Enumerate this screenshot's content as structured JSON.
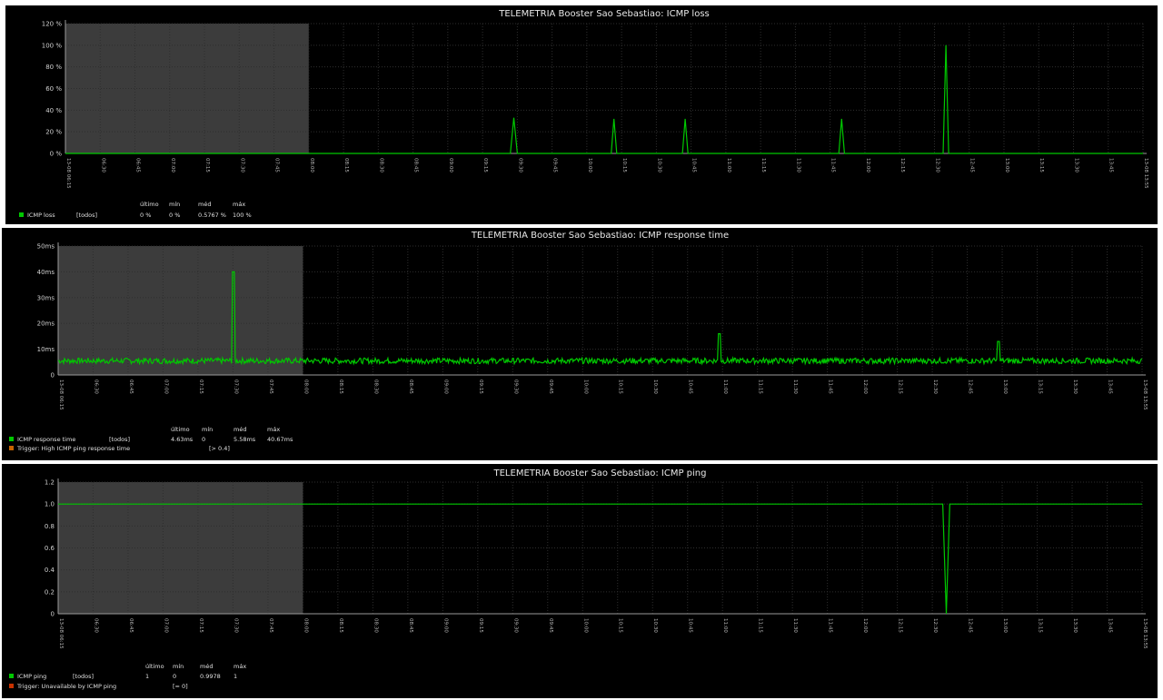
{
  "chart_data": [
    {
      "type": "line",
      "title": "TELEMETRIA Booster Sao Sebastiao: ICMP loss",
      "y_ticks": [
        "0 %",
        "20 %",
        "40 %",
        "60 %",
        "80 %",
        "100 %",
        "120 %"
      ],
      "ylim": [
        0,
        120
      ],
      "x_ticks": [
        "13-08 06:15",
        "06:30",
        "06:45",
        "07:00",
        "07:15",
        "07:30",
        "07:45",
        "08:00",
        "08:15",
        "08:30",
        "08:45",
        "09:00",
        "09:15",
        "09:30",
        "09:45",
        "10:00",
        "10:15",
        "10:30",
        "10:45",
        "11:00",
        "11:15",
        "11:30",
        "11:45",
        "12:00",
        "12:15",
        "12:30",
        "12:45",
        "13:00",
        "13:15",
        "13:30",
        "13:45",
        "13-08 13:55"
      ],
      "shade_x": [
        0,
        7
      ],
      "grid": true,
      "series": [
        {
          "name": "ICMP loss",
          "color": "#00c800",
          "points": [
            [
              0,
              0
            ],
            [
              6.5,
              0
            ],
            [
              12.8,
              0
            ],
            [
              12.9,
              33
            ],
            [
              13.0,
              0
            ],
            [
              15.7,
              0
            ],
            [
              15.78,
              32
            ],
            [
              15.86,
              0
            ],
            [
              17.75,
              0
            ],
            [
              17.83,
              32
            ],
            [
              17.91,
              0
            ],
            [
              22.25,
              0
            ],
            [
              22.33,
              32
            ],
            [
              22.41,
              0
            ],
            [
              25.25,
              0
            ],
            [
              25.33,
              100
            ],
            [
              25.41,
              0
            ],
            [
              31,
              0
            ]
          ]
        }
      ],
      "legend_header": [
        "último",
        "mín",
        "méd",
        "máx"
      ],
      "legend": [
        {
          "color": "#00c800",
          "name": "ICMP loss",
          "func": "[todos]",
          "values": [
            "0 %",
            "0 %",
            "0.5767 %",
            "100 %"
          ]
        }
      ]
    },
    {
      "type": "line",
      "title": "TELEMETRIA Booster Sao Sebastiao: ICMP response time",
      "y_ticks": [
        "0",
        "10ms",
        "20ms",
        "30ms",
        "40ms",
        "50ms"
      ],
      "ylim": [
        0,
        50
      ],
      "x_ticks": [
        "13-08 06:15",
        "06:30",
        "06:45",
        "07:00",
        "07:15",
        "07:30",
        "07:45",
        "08:00",
        "08:15",
        "08:30",
        "08:45",
        "09:00",
        "09:15",
        "09:30",
        "09:45",
        "10:00",
        "10:15",
        "10:30",
        "10:45",
        "11:00",
        "11:15",
        "11:30",
        "11:45",
        "12:00",
        "12:15",
        "12:30",
        "12:45",
        "13:00",
        "13:15",
        "13:30",
        "13:45",
        "13-08 13:55"
      ],
      "shade_x": [
        0,
        7
      ],
      "grid": true,
      "series": [
        {
          "name": "ICMP response time",
          "color": "#00c800",
          "baseline": 5.5,
          "points": [
            [
              0,
              5
            ],
            [
              4.9,
              5
            ],
            [
              5.0,
              40
            ],
            [
              5.1,
              5
            ],
            [
              8.8,
              5
            ],
            [
              8.9,
              8
            ],
            [
              9.0,
              5
            ],
            [
              18.8,
              5
            ],
            [
              18.9,
              16
            ],
            [
              19.0,
              5
            ],
            [
              26.8,
              5
            ],
            [
              26.9,
              13
            ],
            [
              27.0,
              5
            ],
            [
              31,
              5
            ]
          ]
        }
      ],
      "legend_header": [
        "último",
        "mín",
        "méd",
        "máx"
      ],
      "legend": [
        {
          "color": "#00c800",
          "name": "ICMP response time",
          "func": "[todos]",
          "values": [
            "4.63ms",
            "0",
            "5.58ms",
            "40.67ms"
          ]
        },
        {
          "color": "#c86400",
          "name": "Trigger: High ICMP ping response time",
          "func": "[> 0.4]",
          "values": []
        }
      ]
    },
    {
      "type": "line",
      "title": "TELEMETRIA Booster Sao Sebastiao: ICMP ping",
      "y_ticks": [
        "0",
        "0.2",
        "0.4",
        "0.6",
        "0.8",
        "1.0",
        "1.2"
      ],
      "ylim": [
        0,
        1.2
      ],
      "x_ticks": [
        "13-08 06:15",
        "06:30",
        "06:45",
        "07:00",
        "07:15",
        "07:30",
        "07:45",
        "08:00",
        "08:15",
        "08:30",
        "08:45",
        "09:00",
        "09:15",
        "09:30",
        "09:45",
        "10:00",
        "10:15",
        "10:30",
        "10:45",
        "11:00",
        "11:15",
        "11:30",
        "11:45",
        "12:00",
        "12:15",
        "12:30",
        "12:45",
        "13:00",
        "13:15",
        "13:30",
        "13:45",
        "13-08 13:55"
      ],
      "shade_x": [
        0,
        7
      ],
      "grid": true,
      "series": [
        {
          "name": "ICMP ping",
          "color": "#00c800",
          "points": [
            [
              0,
              1
            ],
            [
              25.3,
              1
            ],
            [
              25.4,
              0
            ],
            [
              25.5,
              1
            ],
            [
              31,
              1
            ]
          ]
        }
      ],
      "legend_header": [
        "último",
        "mín",
        "méd",
        "máx"
      ],
      "legend": [
        {
          "color": "#00c800",
          "name": "ICMP ping",
          "func": "[todos]",
          "values": [
            "1",
            "0",
            "0.9978",
            "1"
          ]
        },
        {
          "color": "#c83200",
          "name": "Trigger: Unavailable by ICMP ping",
          "func": "[= 0]",
          "values": []
        }
      ]
    }
  ]
}
